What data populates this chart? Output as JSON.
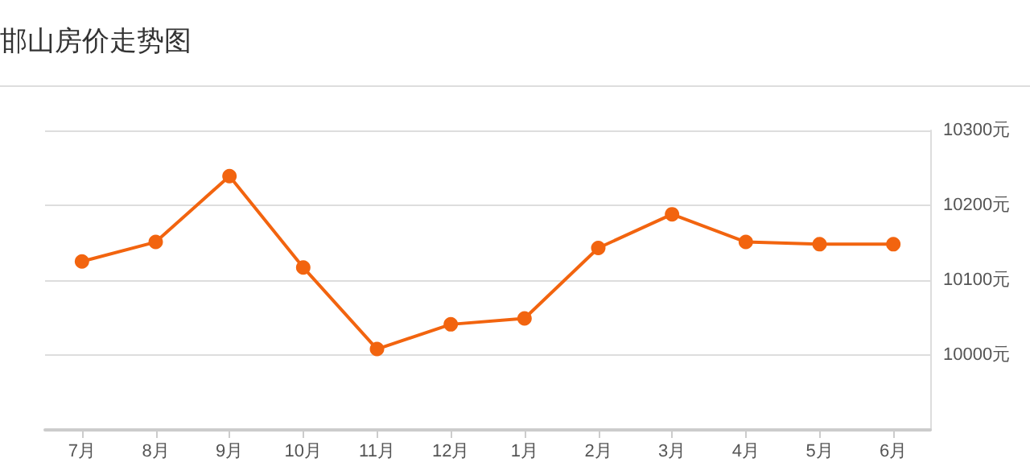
{
  "chart_data": {
    "type": "line",
    "title": "邯山房价走势图",
    "categories": [
      "7月",
      "8月",
      "9月",
      "10月",
      "11月",
      "12月",
      "1月",
      "2月",
      "3月",
      "4月",
      "5月",
      "6月"
    ],
    "series": [
      {
        "color": "#f2640f",
        "values": [
          10125,
          10151,
          10239,
          10117,
          10008,
          10041,
          10049,
          10143,
          10188,
          10151,
          10148,
          10148
        ]
      }
    ],
    "ylim": [
      9900,
      10300
    ],
    "yticks": [
      {
        "value": 10000,
        "label": "10000元"
      },
      {
        "value": 10100,
        "label": "10100元"
      },
      {
        "value": 10200,
        "label": "10200元"
      },
      {
        "value": 10300,
        "label": "10300元"
      }
    ],
    "grid": "y",
    "marker": "circle",
    "line_style": "solid"
  }
}
